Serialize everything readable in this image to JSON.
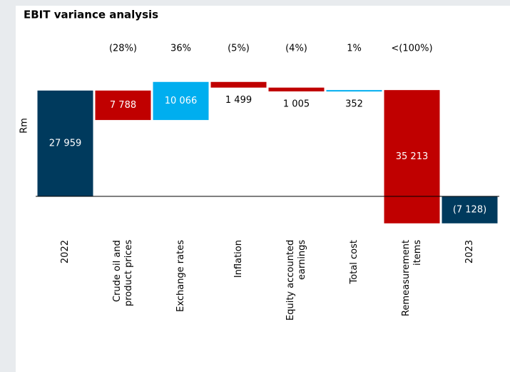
{
  "chart_data": {
    "type": "waterfall",
    "title": "EBIT variance analysis",
    "y_label": "Rm",
    "categories": [
      "2022",
      "Crude oil and product prices",
      "Exchange rates",
      "Inflation",
      "Equity accounted earnings",
      "Total cost",
      "Remeasurement items",
      "2023"
    ],
    "kinds": [
      "total",
      "delta",
      "delta",
      "delta",
      "delta",
      "delta",
      "delta",
      "total"
    ],
    "values": [
      27959,
      -7788,
      10066,
      -1499,
      -1005,
      352,
      -35213,
      -7128
    ],
    "value_labels": [
      "27 959",
      "7 788",
      "10 066",
      "1 499",
      "1 005",
      "352",
      "35 213",
      "(7 128)"
    ],
    "percent_labels": [
      null,
      "(28%)",
      "36%",
      "(5%)",
      "(4%)",
      "1%",
      "<(100%)",
      null
    ],
    "colors": {
      "total": "#003a5d",
      "increase": "#00aeef",
      "decrease": "#c00000"
    },
    "ylim": [
      -10000,
      40000
    ]
  }
}
